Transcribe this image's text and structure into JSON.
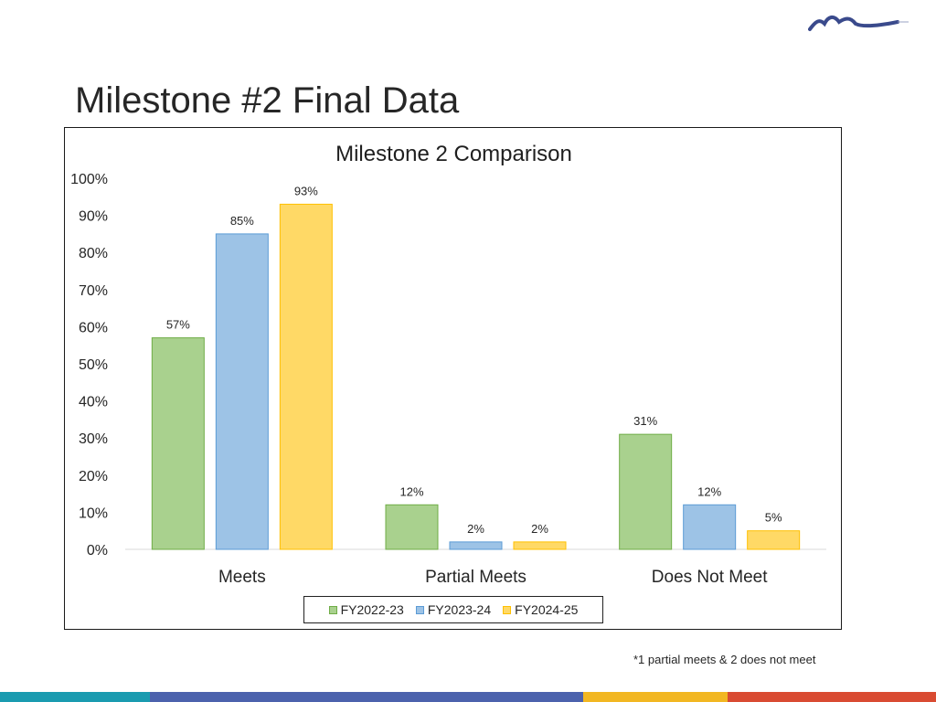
{
  "slide_title": "Milestone #2 Final Data",
  "footnote": "*1 partial meets & 2 does not meet",
  "colors": {
    "fill": [
      "#a9d18e",
      "#9dc3e6",
      "#ffd966"
    ],
    "stroke": [
      "#70ad47",
      "#5b9bd5",
      "#ffc000"
    ],
    "bars": [
      "#1a9bb0",
      "#4c62ad",
      "#f2b722",
      "#d94b32"
    ],
    "logo": "#3a4a8c"
  },
  "chart_data": {
    "type": "bar",
    "title": "Milestone 2 Comparison",
    "categories": [
      "Meets",
      "Partial Meets",
      "Does Not Meet"
    ],
    "series": [
      {
        "name": "FY2022-23",
        "values": [
          57,
          12,
          31
        ]
      },
      {
        "name": "FY2023-24",
        "values": [
          85,
          2,
          12
        ]
      },
      {
        "name": "FY2024-25",
        "values": [
          93,
          2,
          5
        ]
      }
    ],
    "value_labels": [
      [
        "57%",
        "12%",
        "31%"
      ],
      [
        "85%",
        "2%",
        "12%"
      ],
      [
        "93%",
        "2%",
        "5%"
      ]
    ],
    "yticks": [
      "0%",
      "10%",
      "20%",
      "30%",
      "40%",
      "50%",
      "60%",
      "70%",
      "80%",
      "90%",
      "100%"
    ],
    "ylim": [
      0,
      100
    ],
    "xlabel": "",
    "ylabel": "",
    "grid": false,
    "legend_position": "bottom"
  }
}
